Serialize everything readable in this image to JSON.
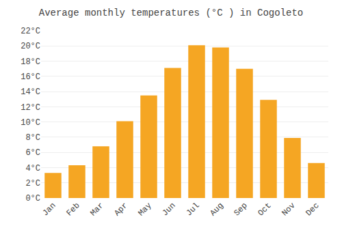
{
  "chart_data": {
    "type": "bar",
    "title": "Average monthly temperatures (°C ) in Cogoleto",
    "categories": [
      "Jan",
      "Feb",
      "Mar",
      "Apr",
      "May",
      "Jun",
      "Jul",
      "Aug",
      "Sep",
      "Oct",
      "Nov",
      "Dec"
    ],
    "values": [
      3.3,
      4.3,
      6.8,
      10.1,
      13.5,
      17.1,
      20.1,
      19.8,
      17.0,
      12.9,
      7.9,
      4.6
    ],
    "color": "#F5A623",
    "ylim": [
      0,
      22
    ],
    "yticks": [
      {
        "value": 0,
        "label": "0°C"
      },
      {
        "value": 2,
        "label": "2°C"
      },
      {
        "value": 4,
        "label": "4°C"
      },
      {
        "value": 6,
        "label": "6°C"
      },
      {
        "value": 8,
        "label": "8°C"
      },
      {
        "value": 10,
        "label": "10°C"
      },
      {
        "value": 12,
        "label": "12°C"
      },
      {
        "value": 14,
        "label": "14°C"
      },
      {
        "value": 16,
        "label": "16°C"
      },
      {
        "value": 18,
        "label": "18°C"
      },
      {
        "value": 20,
        "label": "20°C"
      },
      {
        "value": 22,
        "label": "22°C"
      }
    ],
    "grid": true
  }
}
